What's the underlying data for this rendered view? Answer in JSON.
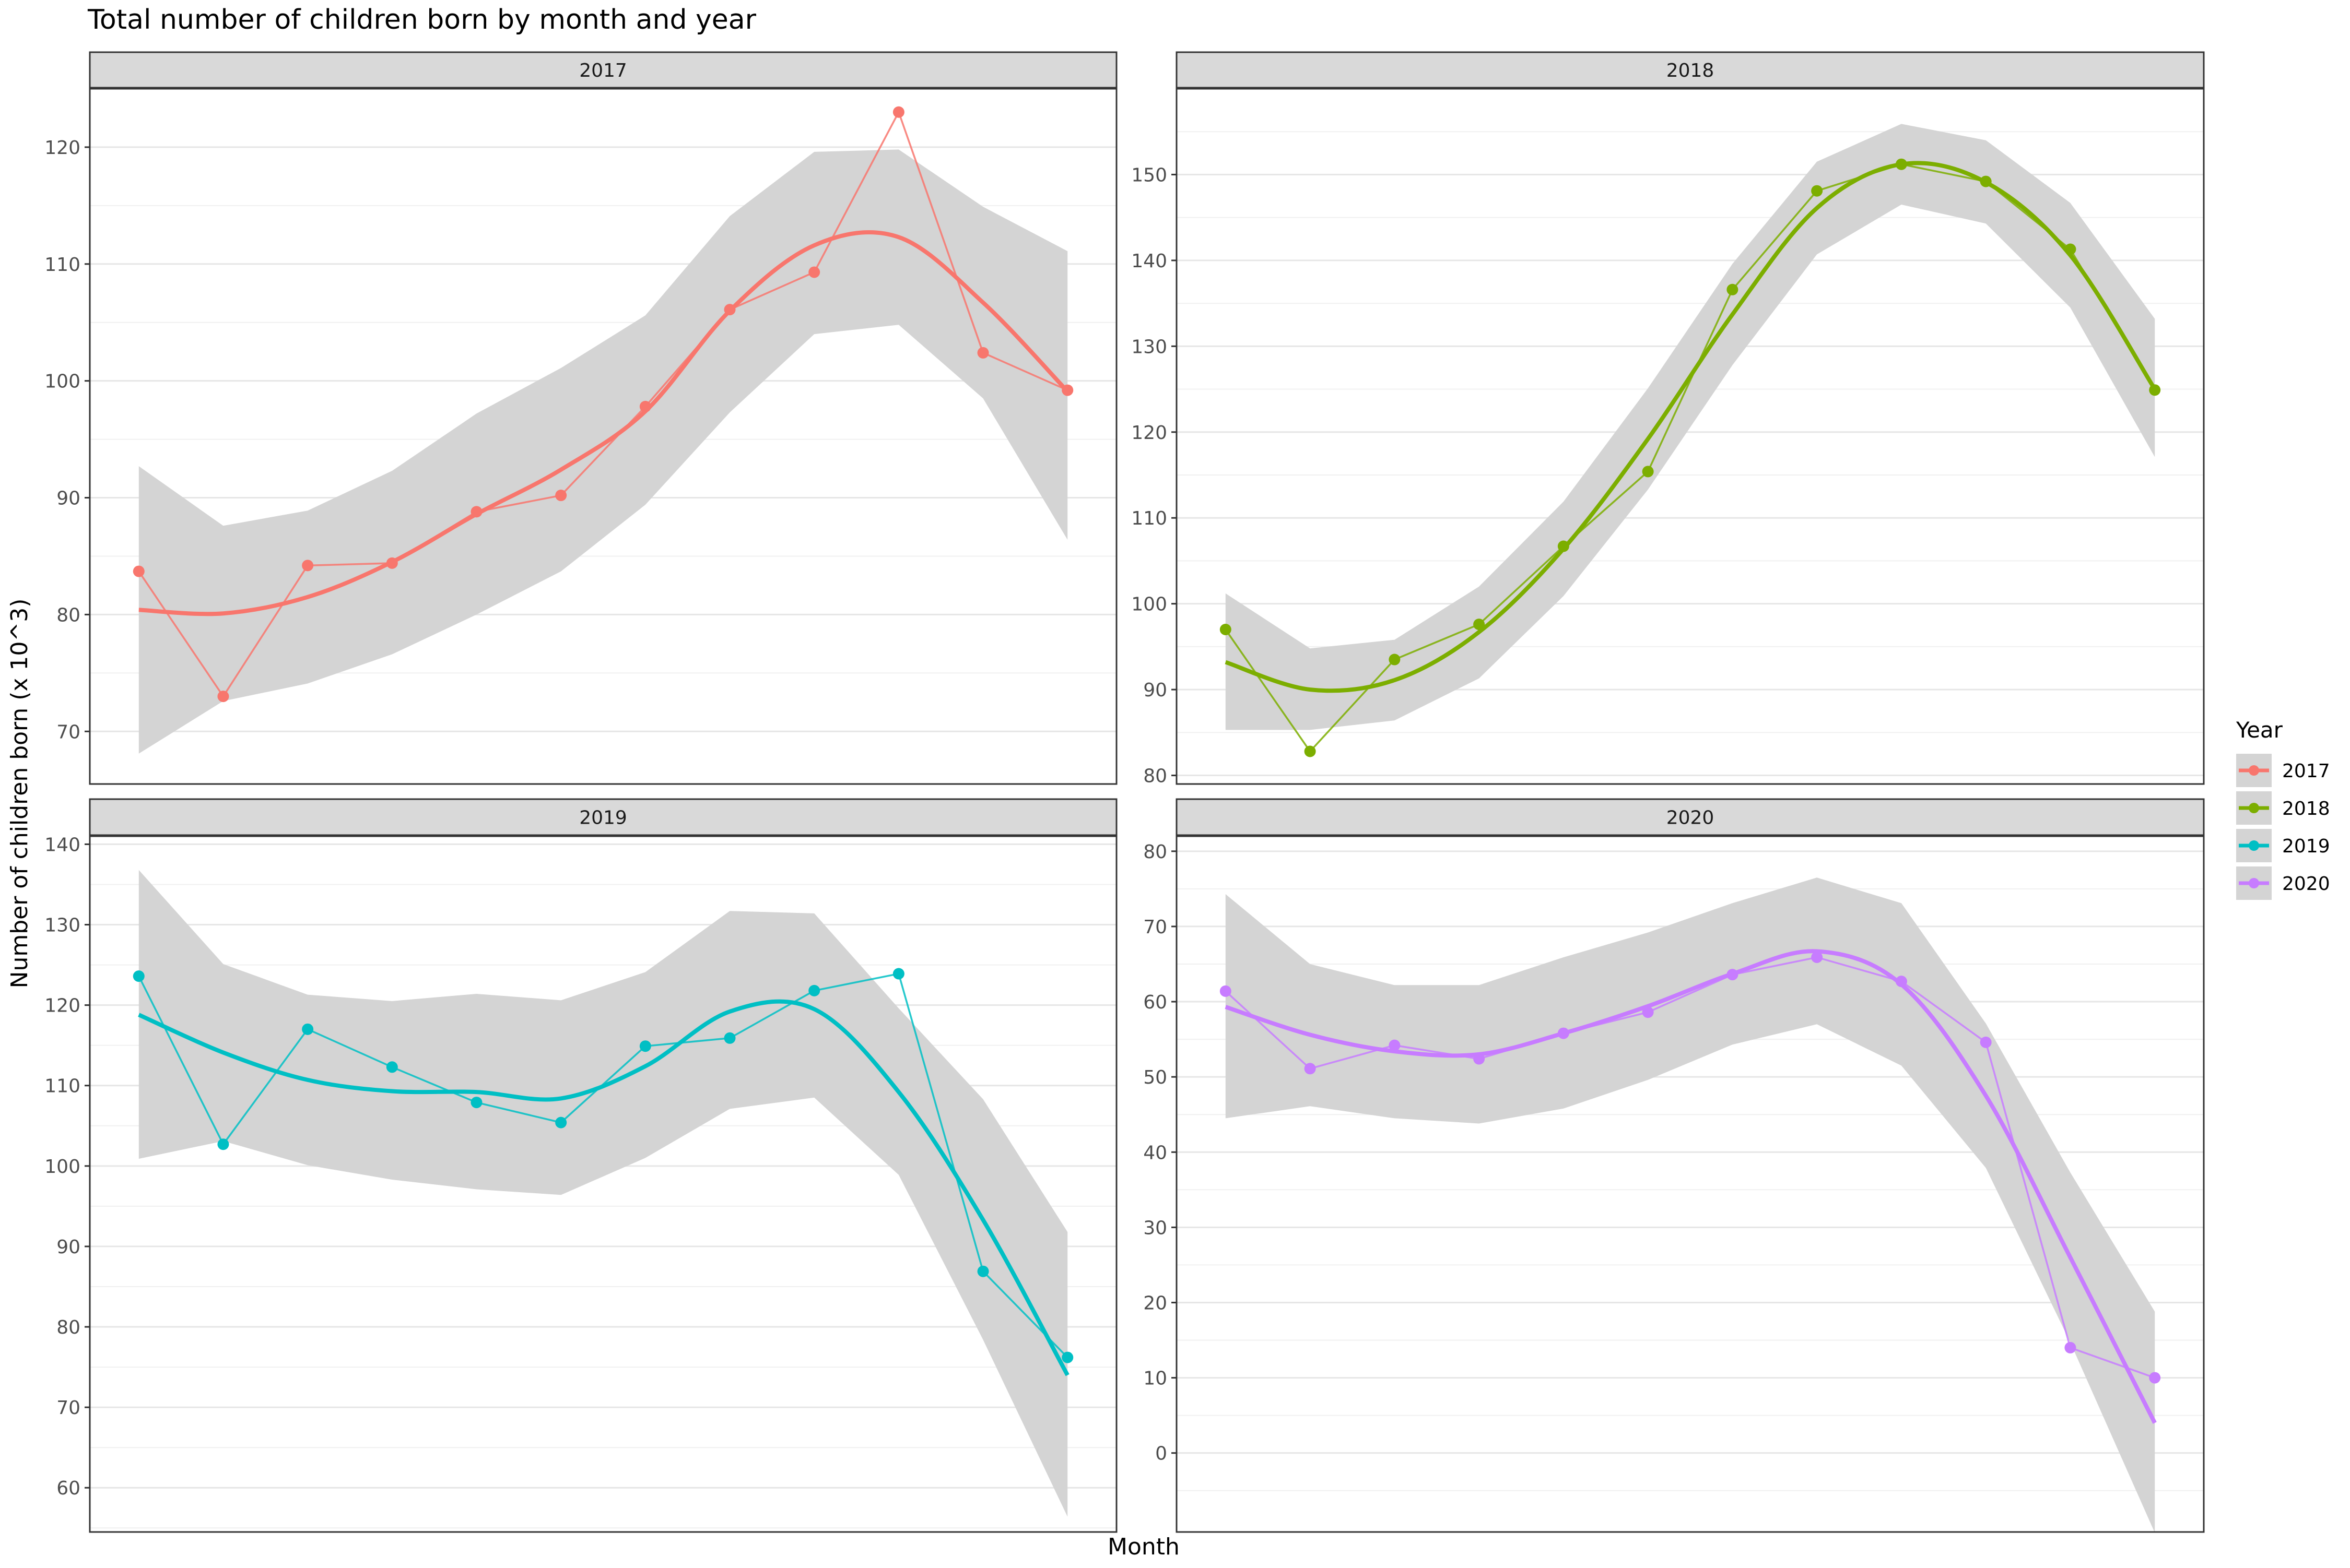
{
  "chart_data": {
    "type": "line",
    "title": "Total number of children born by month and year",
    "xlabel": "Month",
    "ylabel": "Number of children born (x 10^3)",
    "legend": {
      "title": "Year",
      "position": "right"
    },
    "grid": true,
    "facets": [
      {
        "label": "2017",
        "color": "#F8766D",
        "ylim": [
          65.5,
          125
        ],
        "yticks": [
          70,
          80,
          90,
          100,
          110,
          120
        ],
        "x": [
          1,
          2,
          3,
          4,
          5,
          6,
          7,
          8,
          9,
          10,
          11,
          12
        ],
        "values": [
          83.7,
          73.0,
          84.2,
          84.4,
          88.8,
          90.2,
          97.8,
          106.1,
          109.3,
          123.0,
          102.4,
          99.2
        ],
        "smooth": [
          80.4,
          80.1,
          81.5,
          84.5,
          88.6,
          92.4,
          97.4,
          106.0,
          111.6,
          112.3,
          106.7,
          99.1
        ],
        "band_low": [
          68.1,
          72.6,
          74.1,
          76.6,
          80.0,
          83.7,
          89.4,
          97.3,
          104.0,
          104.8,
          98.5,
          86.4
        ],
        "band_high": [
          92.7,
          87.6,
          88.9,
          92.3,
          97.2,
          101.1,
          105.6,
          114.1,
          119.6,
          119.8,
          114.9,
          111.1
        ]
      },
      {
        "label": "2018",
        "color": "#7CAE00",
        "ylim": [
          79,
          160
        ],
        "yticks": [
          80,
          90,
          100,
          110,
          120,
          130,
          140,
          150
        ],
        "x": [
          1,
          2,
          3,
          4,
          5,
          6,
          7,
          8,
          9,
          10,
          11,
          12
        ],
        "values": [
          97.0,
          82.8,
          93.5,
          97.6,
          106.7,
          115.4,
          136.6,
          148.1,
          151.2,
          149.2,
          141.3,
          124.9
        ],
        "smooth": [
          93.2,
          90.0,
          91.1,
          96.7,
          106.4,
          119.2,
          133.7,
          146.1,
          151.2,
          149.1,
          140.6,
          125.0
        ],
        "band_low": [
          85.3,
          85.3,
          86.4,
          91.3,
          100.9,
          113.3,
          127.8,
          140.7,
          146.5,
          144.3,
          134.5,
          117.1
        ],
        "band_high": [
          101.2,
          94.8,
          95.8,
          102.0,
          111.9,
          125.1,
          139.6,
          151.5,
          155.9,
          154.0,
          146.7,
          133.2
        ]
      },
      {
        "label": "2019",
        "color": "#00BFC4",
        "ylim": [
          54.5,
          141
        ],
        "yticks": [
          60,
          70,
          80,
          90,
          100,
          110,
          120,
          130,
          140
        ],
        "x": [
          1,
          2,
          3,
          4,
          5,
          6,
          7,
          8,
          9,
          10,
          11,
          12
        ],
        "values": [
          123.6,
          102.7,
          117.0,
          112.3,
          107.9,
          105.4,
          114.9,
          115.9,
          121.8,
          123.9,
          86.9,
          76.2
        ],
        "smooth": [
          118.8,
          114.1,
          110.7,
          109.3,
          109.2,
          108.4,
          112.4,
          119.2,
          119.5,
          109.2,
          93.3,
          74.0
        ],
        "band_low": [
          100.9,
          103.1,
          100.1,
          98.3,
          97.1,
          96.4,
          101.0,
          107.1,
          108.5,
          98.9,
          78.4,
          56.4
        ],
        "band_high": [
          136.8,
          125.1,
          121.3,
          120.5,
          121.4,
          120.6,
          124.1,
          131.7,
          131.4,
          119.6,
          108.3,
          91.8
        ]
      },
      {
        "label": "2020",
        "color": "#C77CFF",
        "ylim": [
          -10.5,
          82
        ],
        "yticks": [
          0,
          10,
          20,
          30,
          40,
          50,
          60,
          70,
          80
        ],
        "x": [
          1,
          2,
          3,
          4,
          5,
          6,
          7,
          8,
          9,
          10,
          11,
          12
        ],
        "values": [
          61.4,
          51.1,
          54.2,
          52.4,
          55.8,
          58.6,
          63.6,
          65.9,
          62.7,
          54.6,
          14.0,
          10.0
        ],
        "smooth": [
          59.3,
          55.6,
          53.4,
          53.0,
          55.8,
          59.4,
          63.7,
          66.7,
          62.3,
          47.5,
          26.0,
          4.0
        ],
        "band_low": [
          44.5,
          46.1,
          44.5,
          43.8,
          45.8,
          49.6,
          54.3,
          57.0,
          51.5,
          37.9,
          14.7,
          -10.6
        ],
        "band_high": [
          74.3,
          65.0,
          62.2,
          62.2,
          65.9,
          69.2,
          73.1,
          76.5,
          73.1,
          57.1,
          37.3,
          18.8
        ]
      }
    ]
  }
}
